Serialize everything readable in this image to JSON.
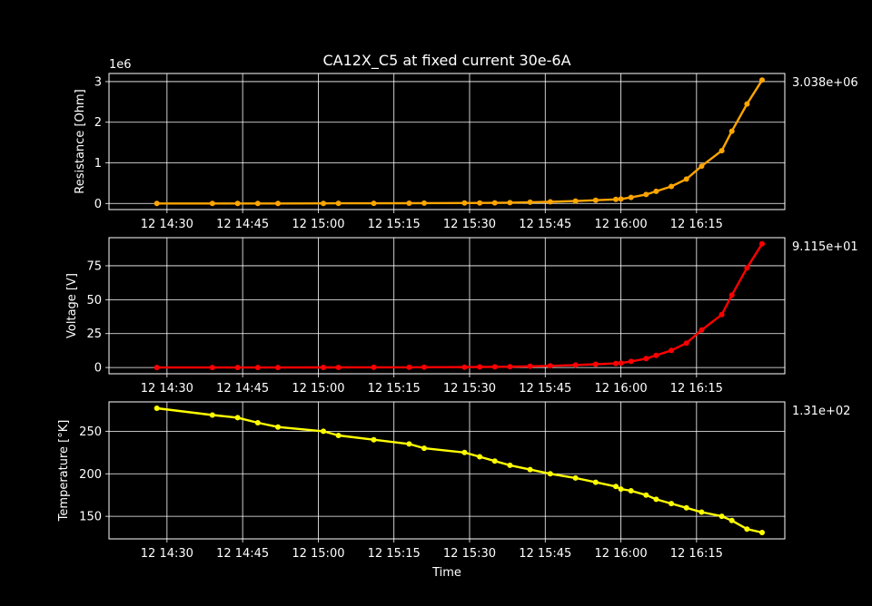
{
  "figure": {
    "title": "CA12X_C5 at fixed current 30e-6A",
    "background": "#000000",
    "foreground": "#ffffff"
  },
  "chart_data": [
    {
      "type": "line",
      "ylabel": "Resistance [Ohm]",
      "offset_label": "1e6",
      "last_value_label": "3.038e+06",
      "color": "#ffa500",
      "xlim": [
        "14:22",
        "16:25"
      ],
      "ylim": [
        -0.15,
        3.2
      ],
      "yticks": [
        0,
        1,
        2,
        3
      ],
      "xticks": [
        "14:30",
        "14:45",
        "15:00",
        "15:15",
        "15:30",
        "15:45",
        "16:00",
        "16:15"
      ],
      "xtick_labels": [
        "12 14:30",
        "12 14:45",
        "12 15:00",
        "12 15:15",
        "12 15:30",
        "12 15:45",
        "12 16:00",
        "12 16:15"
      ],
      "grid": true,
      "points": [
        [
          "14:28",
          0.0
        ],
        [
          "14:39",
          0.0
        ],
        [
          "14:44",
          0.0
        ],
        [
          "14:48",
          0.0
        ],
        [
          "14:52",
          0.0
        ],
        [
          "15:01",
          0.002
        ],
        [
          "15:04",
          0.003
        ],
        [
          "15:11",
          0.004
        ],
        [
          "15:18",
          0.006
        ],
        [
          "15:21",
          0.008
        ],
        [
          "15:29",
          0.01
        ],
        [
          "15:32",
          0.013
        ],
        [
          "15:35",
          0.016
        ],
        [
          "15:38",
          0.02
        ],
        [
          "15:42",
          0.03
        ],
        [
          "15:46",
          0.04
        ],
        [
          "15:51",
          0.06
        ],
        [
          "15:55",
          0.08
        ],
        [
          "15:59",
          0.1
        ],
        [
          "16:00",
          0.11
        ],
        [
          "16:02",
          0.15
        ],
        [
          "16:05",
          0.22
        ],
        [
          "16:07",
          0.3
        ],
        [
          "16:10",
          0.42
        ],
        [
          "16:13",
          0.6
        ],
        [
          "16:16",
          0.92
        ],
        [
          "16:20",
          1.3
        ],
        [
          "16:22",
          1.78
        ],
        [
          "16:25",
          2.45
        ],
        [
          "16:28",
          3.038
        ]
      ]
    },
    {
      "type": "line",
      "ylabel": "Voltage [V]",
      "last_value_label": "9.115e+01",
      "color": "#ff0000",
      "xlim": [
        "14:22",
        "16:25"
      ],
      "ylim": [
        -4.6,
        95.7
      ],
      "yticks": [
        0,
        25,
        50,
        75
      ],
      "xticks": [
        "14:30",
        "14:45",
        "15:00",
        "15:15",
        "15:30",
        "15:45",
        "16:00",
        "16:15"
      ],
      "xtick_labels": [
        "12 14:30",
        "12 14:45",
        "12 15:00",
        "12 15:15",
        "12 15:30",
        "12 15:45",
        "12 16:00",
        "12 16:15"
      ],
      "grid": true,
      "points": [
        [
          "14:28",
          0.0
        ],
        [
          "14:39",
          0.0
        ],
        [
          "14:44",
          0.0
        ],
        [
          "14:48",
          0.0
        ],
        [
          "14:52",
          0.0
        ],
        [
          "15:01",
          0.06
        ],
        [
          "15:04",
          0.09
        ],
        [
          "15:11",
          0.12
        ],
        [
          "15:18",
          0.18
        ],
        [
          "15:21",
          0.24
        ],
        [
          "15:29",
          0.3
        ],
        [
          "15:32",
          0.39
        ],
        [
          "15:35",
          0.48
        ],
        [
          "15:38",
          0.6
        ],
        [
          "15:42",
          0.9
        ],
        [
          "15:46",
          1.2
        ],
        [
          "15:51",
          1.8
        ],
        [
          "15:55",
          2.4
        ],
        [
          "15:59",
          3.0
        ],
        [
          "16:00",
          3.3
        ],
        [
          "16:02",
          4.5
        ],
        [
          "16:05",
          6.6
        ],
        [
          "16:07",
          9.0
        ],
        [
          "16:10",
          12.6
        ],
        [
          "16:13",
          18.0
        ],
        [
          "16:16",
          27.6
        ],
        [
          "16:20",
          39.0
        ],
        [
          "16:22",
          53.4
        ],
        [
          "16:25",
          73.5
        ],
        [
          "16:28",
          91.15
        ]
      ]
    },
    {
      "type": "line",
      "xlabel": "Time",
      "ylabel": "Temperature [°K]",
      "last_value_label": "1.31e+02",
      "color": "#ffff00",
      "xlim": [
        "14:22",
        "16:25"
      ],
      "ylim": [
        123.5,
        284.5
      ],
      "yticks": [
        150,
        200,
        250
      ],
      "xticks": [
        "14:30",
        "14:45",
        "15:00",
        "15:15",
        "15:30",
        "15:45",
        "16:00",
        "16:15"
      ],
      "xtick_labels": [
        "12 14:30",
        "12 14:45",
        "12 15:00",
        "12 15:15",
        "12 15:30",
        "12 15:45",
        "12 16:00",
        "12 16:15"
      ],
      "grid": true,
      "points": [
        [
          "14:28",
          277
        ],
        [
          "14:39",
          269
        ],
        [
          "14:44",
          266
        ],
        [
          "14:48",
          260
        ],
        [
          "14:52",
          255
        ],
        [
          "15:01",
          250
        ],
        [
          "15:04",
          245
        ],
        [
          "15:11",
          240
        ],
        [
          "15:18",
          235
        ],
        [
          "15:21",
          230
        ],
        [
          "15:29",
          225
        ],
        [
          "15:32",
          220
        ],
        [
          "15:35",
          215
        ],
        [
          "15:38",
          210
        ],
        [
          "15:42",
          205
        ],
        [
          "15:46",
          200
        ],
        [
          "15:51",
          195
        ],
        [
          "15:55",
          190
        ],
        [
          "15:59",
          185
        ],
        [
          "16:00",
          182
        ],
        [
          "16:02",
          180
        ],
        [
          "16:05",
          175
        ],
        [
          "16:07",
          170
        ],
        [
          "16:10",
          165
        ],
        [
          "16:13",
          160
        ],
        [
          "16:16",
          155
        ],
        [
          "16:20",
          150
        ],
        [
          "16:22",
          145
        ],
        [
          "16:25",
          135
        ],
        [
          "16:28",
          131
        ]
      ]
    }
  ]
}
